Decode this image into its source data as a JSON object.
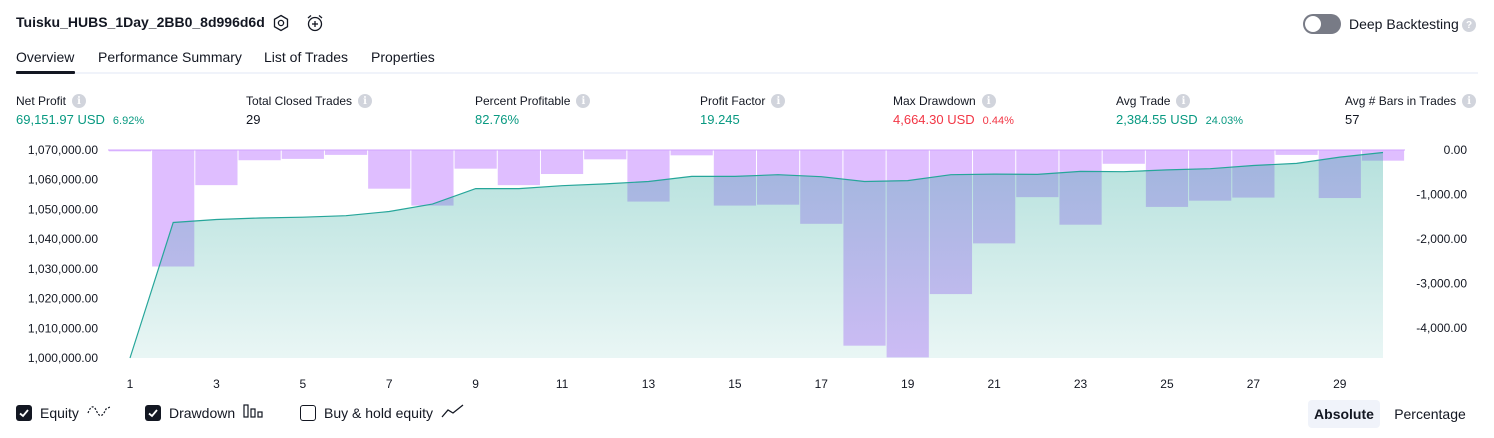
{
  "header": {
    "title": "Tuisku_HUBS_1Day_2BB0_8d996d6d",
    "deep_backtesting_label": "Deep Backtesting",
    "deep_backtesting_on": false,
    "help_glyph": "?"
  },
  "tabs": [
    {
      "label": "Overview",
      "active": true
    },
    {
      "label": "Performance Summary",
      "active": false
    },
    {
      "label": "List of Trades",
      "active": false
    },
    {
      "label": "Properties",
      "active": false
    }
  ],
  "metrics": [
    {
      "label": "Net Profit",
      "value": "69,151.97 USD",
      "pct": "6.92%",
      "tone": "green"
    },
    {
      "label": "Total Closed Trades",
      "value": "29",
      "pct": "",
      "tone": "neutral"
    },
    {
      "label": "Percent Profitable",
      "value": "82.76%",
      "pct": "",
      "tone": "green"
    },
    {
      "label": "Profit Factor",
      "value": "19.245",
      "pct": "",
      "tone": "green"
    },
    {
      "label": "Max Drawdown",
      "value": "4,664.30 USD",
      "pct": "0.44%",
      "tone": "red"
    },
    {
      "label": "Avg Trade",
      "value": "2,384.55 USD",
      "pct": "24.03%",
      "tone": "green"
    },
    {
      "label": "Avg # Bars in Trades",
      "value": "57",
      "pct": "",
      "tone": "neutral"
    }
  ],
  "colors": {
    "equity_line": "#26a69a",
    "equity_fill": "#b2dfdb",
    "drawdown_bar": "#d1a3ff",
    "green": "#089981",
    "red": "#f23645"
  },
  "chart_data": {
    "type": "area",
    "x_ticks": [
      1,
      3,
      5,
      7,
      9,
      11,
      13,
      15,
      17,
      19,
      21,
      23,
      25,
      27,
      29
    ],
    "left_axis": {
      "ylim": [
        1000000,
        1070000
      ],
      "tick_values": [
        1000000,
        1010000,
        1020000,
        1030000,
        1040000,
        1050000,
        1060000,
        1070000
      ],
      "tick_labels": [
        "1,000,000.00",
        "1,010,000.00",
        "1,020,000.00",
        "1,030,000.00",
        "1,040,000.00",
        "1,050,000.00",
        "1,060,000.00",
        "1,070,000.00"
      ]
    },
    "right_axis": {
      "ylim": [
        -4700,
        0
      ],
      "tick_values": [
        0,
        -1000,
        -2000,
        -3000,
        -4000
      ],
      "tick_labels": [
        "0.00",
        "-1,000.00",
        "-2,000.00",
        "-3,000.00",
        "-4,000.00"
      ]
    },
    "series": [
      {
        "name": "Equity",
        "axis": "left",
        "x": [
          1,
          2,
          3,
          4,
          5,
          6,
          7,
          8,
          9,
          10,
          11,
          12,
          13,
          14,
          15,
          16,
          17,
          18,
          19,
          20,
          21,
          22,
          23,
          24,
          25,
          26,
          27,
          28,
          29,
          30
        ],
        "values": [
          1000000,
          1045600,
          1046600,
          1047100,
          1047400,
          1047900,
          1049300,
          1051800,
          1057000,
          1057000,
          1058000,
          1058600,
          1059400,
          1061100,
          1061100,
          1061700,
          1061000,
          1059400,
          1059700,
          1061700,
          1061900,
          1061800,
          1062800,
          1062700,
          1063300,
          1063700,
          1064800,
          1065500,
          1067600,
          1069151.97
        ]
      },
      {
        "name": "Drawdown",
        "axis": "right",
        "x": [
          1,
          2,
          3,
          4,
          5,
          6,
          7,
          8,
          9,
          10,
          11,
          12,
          13,
          14,
          15,
          16,
          17,
          18,
          19,
          20,
          21,
          22,
          23,
          24,
          25,
          26,
          27,
          28,
          29,
          30
        ],
        "values": [
          -30,
          -2620,
          -790,
          -230,
          -200,
          -110,
          -870,
          -1250,
          -420,
          -790,
          -540,
          -210,
          -1160,
          -120,
          -1250,
          -1230,
          -1660,
          -4400,
          -4664.3,
          -3240,
          -2100,
          -1060,
          -1680,
          -310,
          -1280,
          -1140,
          -1070,
          -110,
          -1080,
          -240
        ]
      }
    ]
  },
  "legend": {
    "items": [
      {
        "label": "Equity",
        "checked": true,
        "icon": "equity-wave-icon"
      },
      {
        "label": "Drawdown",
        "checked": true,
        "icon": "drawdown-bars-icon"
      },
      {
        "label": "Buy & hold equity",
        "checked": false,
        "icon": "buy-hold-line-icon"
      }
    ],
    "modes": [
      {
        "label": "Absolute",
        "active": true
      },
      {
        "label": "Percentage",
        "active": false
      }
    ]
  }
}
